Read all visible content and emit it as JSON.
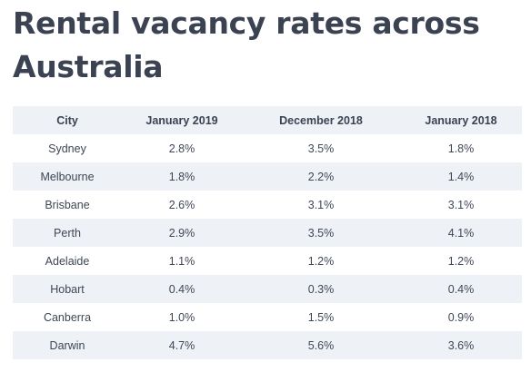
{
  "title": "Rental vacancy rates across Australia",
  "table": {
    "headers": [
      "City",
      "January 2019",
      "December 2018",
      "January 2018"
    ],
    "rows": [
      [
        "Sydney",
        "2.8%",
        "3.5%",
        "1.8%"
      ],
      [
        "Melbourne",
        "1.8%",
        "2.2%",
        "1.4%"
      ],
      [
        "Brisbane",
        "2.6%",
        "3.1%",
        "3.1%"
      ],
      [
        "Perth",
        "2.9%",
        "3.5%",
        "4.1%"
      ],
      [
        "Adelaide",
        "1.1%",
        "1.2%",
        "1.2%"
      ],
      [
        "Hobart",
        "0.4%",
        "0.3%",
        "0.4%"
      ],
      [
        "Canberra",
        "1.0%",
        "1.5%",
        "0.9%"
      ],
      [
        "Darwin",
        "4.7%",
        "5.6%",
        "3.6%"
      ]
    ]
  },
  "colors": {
    "title": "#3b4252",
    "row_shade": "#eef2f7",
    "text": "#3f4654"
  }
}
